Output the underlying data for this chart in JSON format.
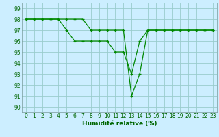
{
  "line1_x": [
    0,
    1,
    2,
    3,
    4,
    5,
    6,
    7,
    8,
    9,
    10,
    11,
    12,
    13,
    14,
    15,
    16,
    17,
    18,
    19,
    20,
    21,
    22,
    23
  ],
  "line1_y": [
    98,
    98,
    98,
    98,
    98,
    97,
    96,
    96,
    96,
    96,
    96,
    95,
    95,
    93,
    96,
    97,
    97,
    97,
    97,
    97,
    97,
    97,
    97,
    97
  ],
  "line2_x": [
    0,
    1,
    2,
    3,
    4,
    5,
    6,
    7,
    8,
    9,
    10,
    11,
    12,
    13,
    14,
    15,
    16,
    17,
    18,
    19,
    20,
    21,
    22,
    23
  ],
  "line2_y": [
    98,
    98,
    98,
    98,
    98,
    98,
    98,
    98,
    97,
    97,
    97,
    97,
    97,
    91,
    93,
    97,
    97,
    97,
    97,
    97,
    97,
    97,
    97,
    97
  ],
  "line_color": "#008800",
  "bg_color": "#cceeff",
  "grid_color": "#99cccc",
  "xlabel": "Humidité relative (%)",
  "xlabel_color": "#006600",
  "xlabel_fontsize": 6.5,
  "tick_color": "#006600",
  "tick_fontsize": 5.5,
  "ytick_fontsize": 5.5,
  "ylim": [
    89.5,
    99.5
  ],
  "xlim": [
    -0.5,
    23.5
  ],
  "yticks": [
    90,
    91,
    92,
    93,
    94,
    95,
    96,
    97,
    98,
    99
  ],
  "xticks": [
    0,
    1,
    2,
    3,
    4,
    5,
    6,
    7,
    8,
    9,
    10,
    11,
    12,
    13,
    14,
    15,
    16,
    17,
    18,
    19,
    20,
    21,
    22,
    23
  ]
}
